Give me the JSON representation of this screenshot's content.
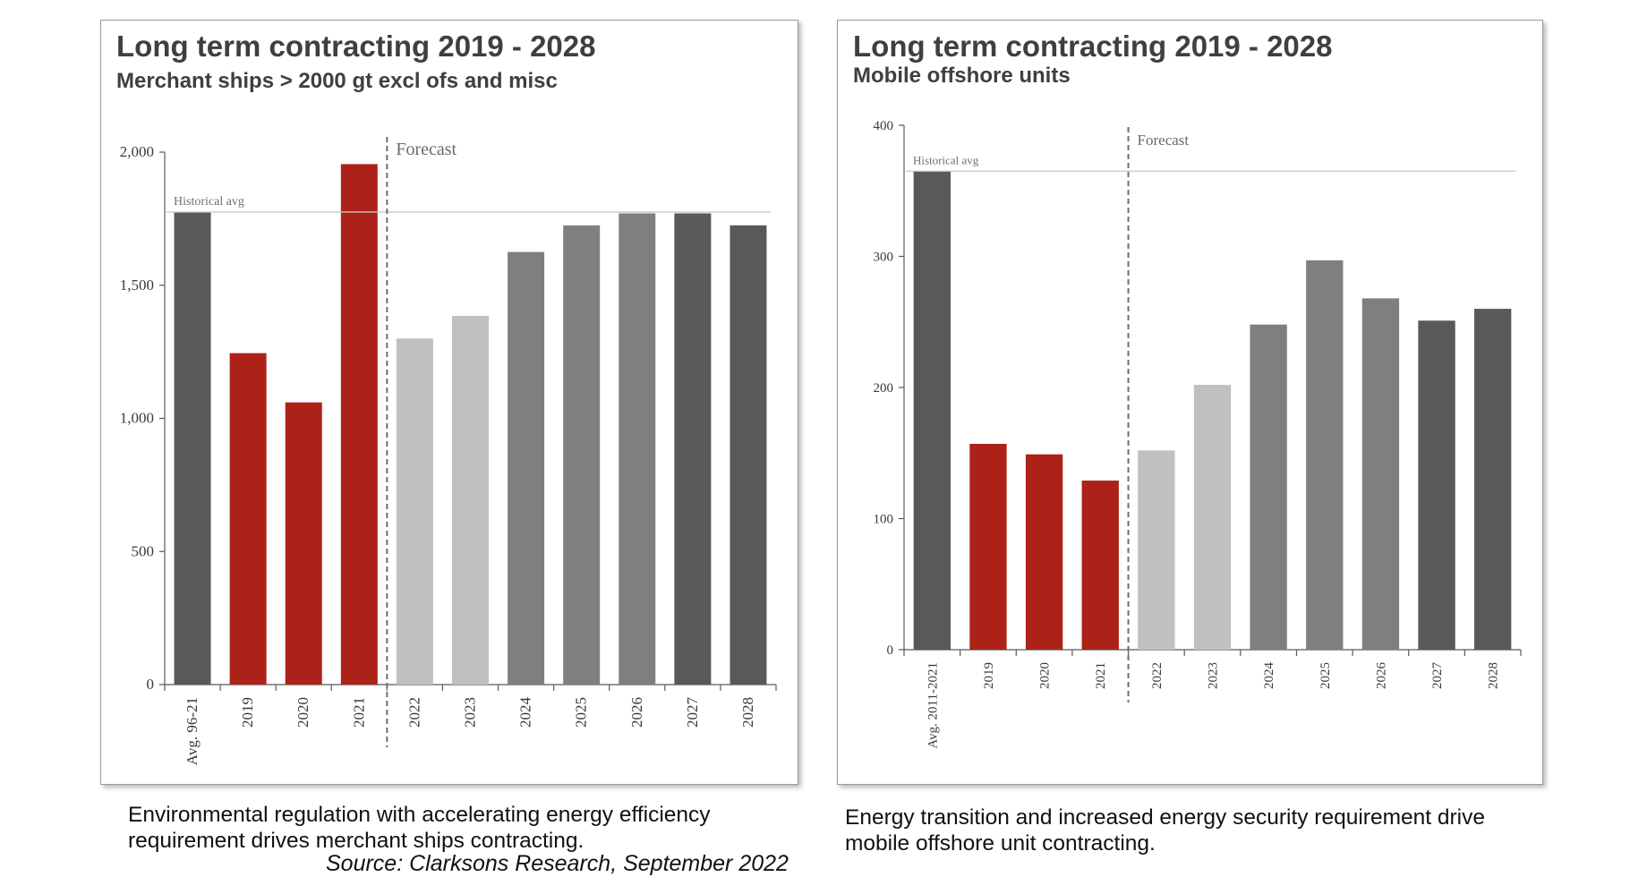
{
  "charts": {
    "left": {
      "title": "Long term contracting 2019 - 2028",
      "subtitle": "Merchant ships > 2000 gt excl ofs and misc",
      "caption": "Environmental regulation with accelerating energy efficiency requirement drives merchant ships contracting.",
      "source": "Source: Clarksons Research, September 2022"
    },
    "right": {
      "title": "Long term contracting 2019 - 2028",
      "subtitle": "Mobile offshore units",
      "caption": "Energy transition and increased energy security requirement drive mobile offshore unit contracting."
    }
  },
  "chart_data": [
    {
      "type": "bar",
      "title": "Long term contracting 2019 - 2028",
      "subtitle": "Merchant ships > 2000 gt excl ofs and misc",
      "categories": [
        "Avg. 96-21",
        "2019",
        "2020",
        "2021",
        "2022",
        "2023",
        "2024",
        "2025",
        "2026",
        "2027",
        "2028"
      ],
      "values": [
        1775,
        1245,
        1060,
        1955,
        1300,
        1385,
        1625,
        1725,
        1770,
        1770,
        1725
      ],
      "bar_colors": [
        "#595959",
        "#ad2218",
        "#ad2218",
        "#ad2218",
        "#c0c0c0",
        "#c0c0c0",
        "#7f7f7f",
        "#7f7f7f",
        "#7f7f7f",
        "#595959",
        "#595959"
      ],
      "yticks": [
        0,
        500,
        1000,
        1500,
        2000
      ],
      "ytick_labels": [
        "0",
        "500",
        "1,000",
        "1,500",
        "2,000"
      ],
      "ylim": [
        0,
        2000
      ],
      "reference_line": {
        "label": "Historical avg",
        "value": 1775
      },
      "forecast_label": "Forecast",
      "forecast_after_index": 3,
      "xlabel": "",
      "ylabel": ""
    },
    {
      "type": "bar",
      "title": "Long term contracting 2019 - 2028",
      "subtitle": "Mobile offshore units",
      "categories": [
        "Avg. 2011-2021",
        "2019",
        "2020",
        "2021",
        "2022",
        "2023",
        "2024",
        "2025",
        "2026",
        "2027",
        "2028"
      ],
      "values": [
        365,
        157,
        149,
        129,
        152,
        202,
        248,
        297,
        268,
        251,
        260
      ],
      "bar_colors": [
        "#595959",
        "#ad2218",
        "#ad2218",
        "#ad2218",
        "#c0c0c0",
        "#c0c0c0",
        "#7f7f7f",
        "#7f7f7f",
        "#7f7f7f",
        "#595959",
        "#595959"
      ],
      "yticks": [
        0,
        100,
        200,
        300,
        400
      ],
      "ytick_labels": [
        "0",
        "100",
        "200",
        "300",
        "400"
      ],
      "ylim": [
        0,
        400
      ],
      "reference_line": {
        "label": "Historical avg",
        "value": 365
      },
      "forecast_label": "Forecast",
      "forecast_after_index": 3,
      "xlabel": "",
      "ylabel": ""
    }
  ]
}
